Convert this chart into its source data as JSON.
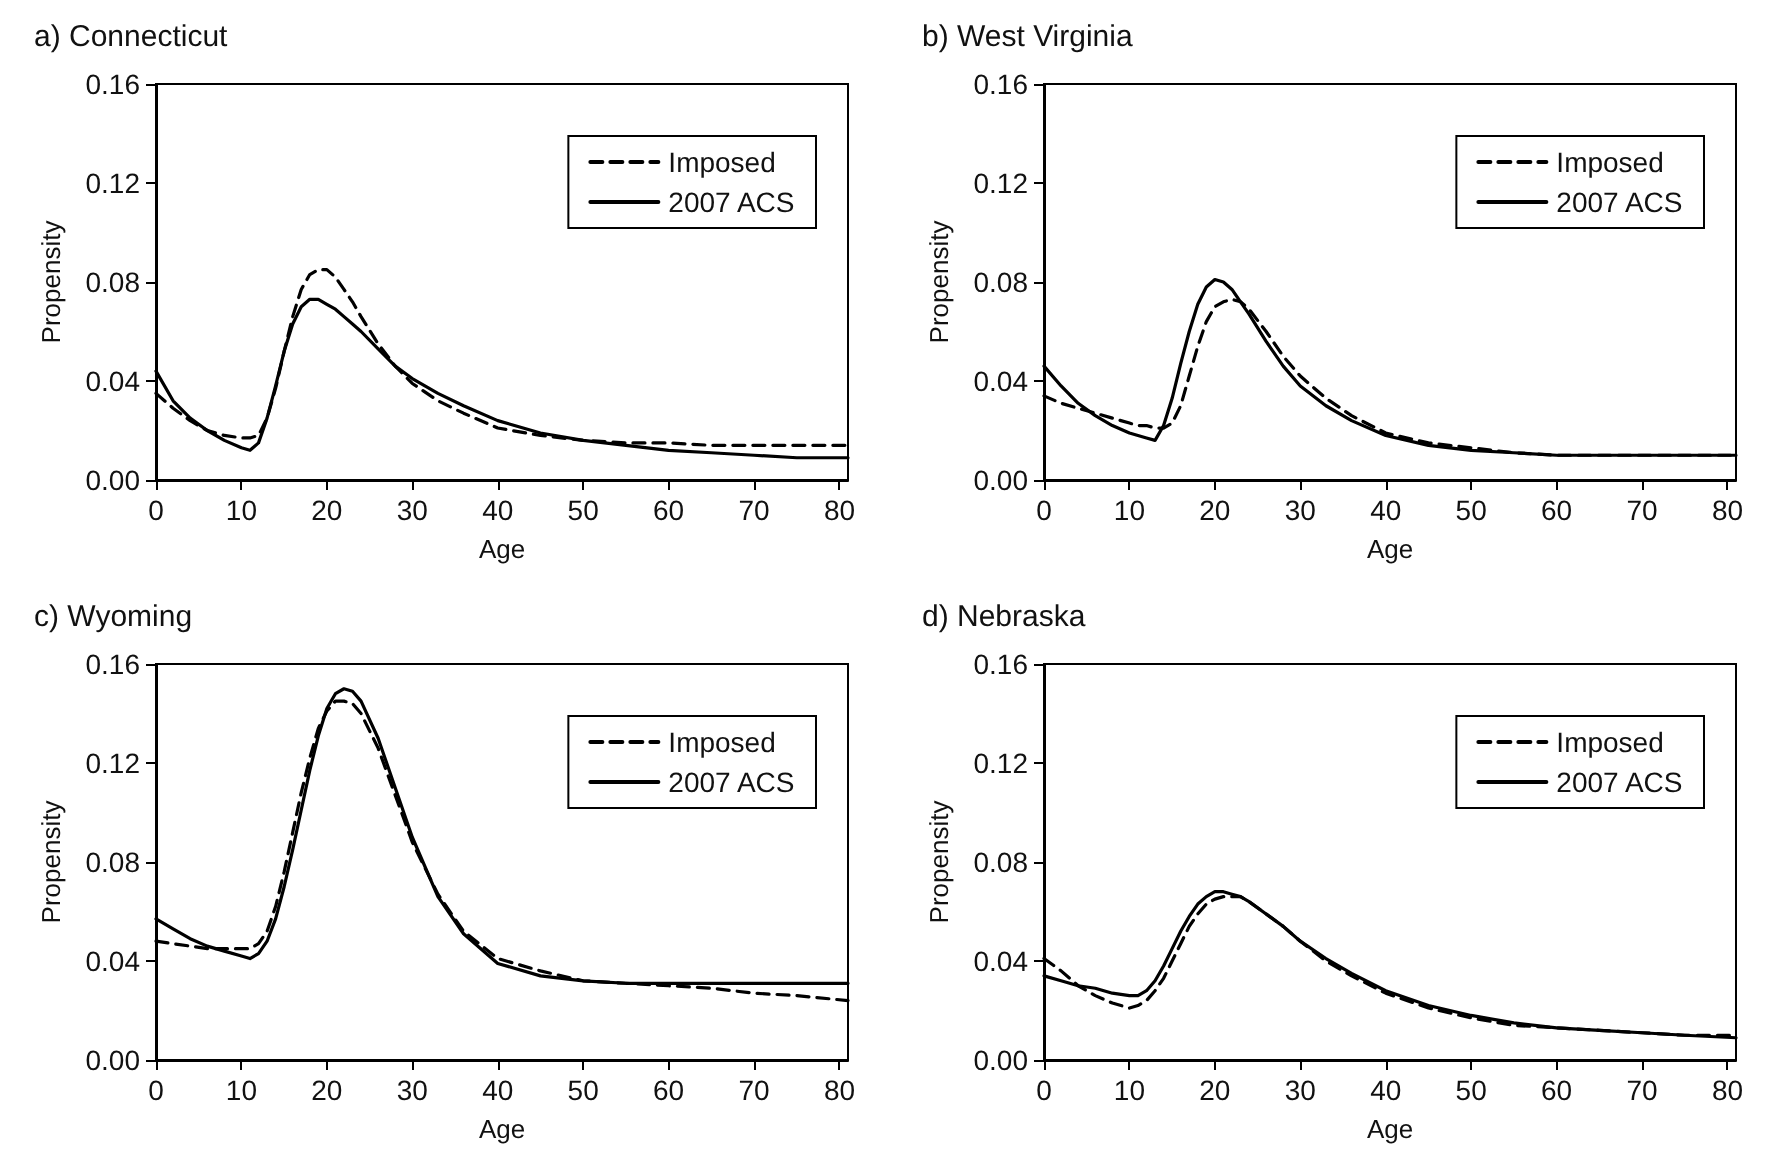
{
  "chart_data": [
    {
      "type": "line",
      "title": "a) Connecticut",
      "xlabel": "Age",
      "ylabel": "Propensity",
      "xlim": [
        0,
        81
      ],
      "xticks": [
        0,
        10,
        20,
        30,
        40,
        50,
        60,
        70,
        80
      ],
      "ylim": [
        0,
        0.16
      ],
      "yticks": [
        {
          "value": 0,
          "label": "0.00"
        },
        {
          "value": 0.04,
          "label": "0.04"
        },
        {
          "value": 0.08,
          "label": "0.08"
        },
        {
          "value": 0.12,
          "label": "0.12"
        },
        {
          "value": 0.16,
          "label": "0.16"
        }
      ],
      "grid": false,
      "legend": "top right",
      "marker": "none",
      "x": [
        0,
        2,
        4,
        6,
        8,
        10,
        11,
        12,
        13,
        14,
        15,
        16,
        17,
        18,
        19,
        20,
        21,
        22,
        23,
        24,
        26,
        28,
        30,
        33,
        36,
        40,
        45,
        50,
        55,
        60,
        65,
        70,
        75,
        81
      ],
      "series": [
        {
          "name": "Imposed",
          "color": "#000000",
          "line_style": "dashed",
          "values": [
            0.035,
            0.029,
            0.024,
            0.02,
            0.018,
            0.017,
            0.017,
            0.018,
            0.025,
            0.037,
            0.052,
            0.066,
            0.077,
            0.083,
            0.085,
            0.085,
            0.082,
            0.077,
            0.072,
            0.066,
            0.055,
            0.046,
            0.039,
            0.032,
            0.027,
            0.021,
            0.018,
            0.016,
            0.015,
            0.015,
            0.014,
            0.014,
            0.014,
            0.014
          ]
        },
        {
          "name": "2007 ACS",
          "color": "#000000",
          "line_style": "solid",
          "values": [
            0.044,
            0.032,
            0.025,
            0.02,
            0.016,
            0.013,
            0.012,
            0.015,
            0.025,
            0.038,
            0.052,
            0.063,
            0.07,
            0.073,
            0.073,
            0.071,
            0.069,
            0.066,
            0.063,
            0.06,
            0.053,
            0.046,
            0.041,
            0.035,
            0.03,
            0.024,
            0.019,
            0.016,
            0.014,
            0.012,
            0.011,
            0.01,
            0.009,
            0.009
          ]
        }
      ]
    },
    {
      "type": "line",
      "title": "b) West Virginia",
      "xlabel": "Age",
      "ylabel": "Propensity",
      "xlim": [
        0,
        81
      ],
      "xticks": [
        0,
        10,
        20,
        30,
        40,
        50,
        60,
        70,
        80
      ],
      "ylim": [
        0,
        0.16
      ],
      "yticks": [
        {
          "value": 0,
          "label": "0.00"
        },
        {
          "value": 0.04,
          "label": "0.04"
        },
        {
          "value": 0.08,
          "label": "0.08"
        },
        {
          "value": 0.12,
          "label": "0.12"
        },
        {
          "value": 0.16,
          "label": "0.16"
        }
      ],
      "grid": false,
      "legend": "top right",
      "marker": "none",
      "x": [
        0,
        2,
        4,
        6,
        8,
        10,
        11,
        12,
        13,
        14,
        15,
        16,
        17,
        18,
        19,
        20,
        21,
        22,
        23,
        24,
        26,
        28,
        30,
        33,
        36,
        40,
        45,
        50,
        55,
        60,
        65,
        70,
        75,
        81
      ],
      "series": [
        {
          "name": "Imposed",
          "color": "#000000",
          "line_style": "dashed",
          "values": [
            0.034,
            0.031,
            0.029,
            0.027,
            0.025,
            0.023,
            0.022,
            0.022,
            0.021,
            0.021,
            0.023,
            0.03,
            0.042,
            0.054,
            0.064,
            0.07,
            0.072,
            0.073,
            0.072,
            0.069,
            0.06,
            0.05,
            0.042,
            0.033,
            0.026,
            0.019,
            0.015,
            0.013,
            0.011,
            0.01,
            0.01,
            0.01,
            0.01,
            0.01
          ]
        },
        {
          "name": "2007 ACS",
          "color": "#000000",
          "line_style": "solid",
          "values": [
            0.046,
            0.038,
            0.031,
            0.026,
            0.022,
            0.019,
            0.018,
            0.017,
            0.016,
            0.022,
            0.033,
            0.047,
            0.06,
            0.071,
            0.078,
            0.081,
            0.08,
            0.077,
            0.072,
            0.067,
            0.056,
            0.046,
            0.038,
            0.03,
            0.024,
            0.018,
            0.014,
            0.012,
            0.011,
            0.01,
            0.01,
            0.01,
            0.01,
            0.01
          ]
        }
      ]
    },
    {
      "type": "line",
      "title": "c) Wyoming",
      "xlabel": "Age",
      "ylabel": "Propensity",
      "xlim": [
        0,
        81
      ],
      "xticks": [
        0,
        10,
        20,
        30,
        40,
        50,
        60,
        70,
        80
      ],
      "ylim": [
        0,
        0.16
      ],
      "yticks": [
        {
          "value": 0,
          "label": "0.00"
        },
        {
          "value": 0.04,
          "label": "0.04"
        },
        {
          "value": 0.08,
          "label": "0.08"
        },
        {
          "value": 0.12,
          "label": "0.12"
        },
        {
          "value": 0.16,
          "label": "0.16"
        }
      ],
      "grid": false,
      "legend": "top right",
      "marker": "none",
      "x": [
        0,
        2,
        4,
        6,
        8,
        10,
        11,
        12,
        13,
        14,
        15,
        16,
        17,
        18,
        19,
        20,
        21,
        22,
        23,
        24,
        26,
        28,
        30,
        33,
        36,
        40,
        45,
        50,
        55,
        60,
        65,
        70,
        75,
        81
      ],
      "series": [
        {
          "name": "Imposed",
          "color": "#000000",
          "line_style": "dashed",
          "values": [
            0.048,
            0.047,
            0.046,
            0.045,
            0.045,
            0.045,
            0.045,
            0.047,
            0.052,
            0.062,
            0.076,
            0.092,
            0.108,
            0.122,
            0.134,
            0.141,
            0.145,
            0.145,
            0.144,
            0.14,
            0.126,
            0.107,
            0.088,
            0.067,
            0.052,
            0.041,
            0.036,
            0.032,
            0.031,
            0.03,
            0.029,
            0.027,
            0.026,
            0.024
          ]
        },
        {
          "name": "2007 ACS",
          "color": "#000000",
          "line_style": "solid",
          "values": [
            0.057,
            0.053,
            0.049,
            0.046,
            0.044,
            0.042,
            0.041,
            0.043,
            0.048,
            0.057,
            0.07,
            0.085,
            0.101,
            0.117,
            0.131,
            0.142,
            0.148,
            0.15,
            0.149,
            0.145,
            0.13,
            0.11,
            0.09,
            0.066,
            0.051,
            0.039,
            0.034,
            0.032,
            0.031,
            0.031,
            0.031,
            0.031,
            0.031,
            0.031
          ]
        }
      ]
    },
    {
      "type": "line",
      "title": "d) Nebraska",
      "xlabel": "Age",
      "ylabel": "Propensity",
      "xlim": [
        0,
        81
      ],
      "xticks": [
        0,
        10,
        20,
        30,
        40,
        50,
        60,
        70,
        80
      ],
      "ylim": [
        0,
        0.16
      ],
      "yticks": [
        {
          "value": 0,
          "label": "0.00"
        },
        {
          "value": 0.04,
          "label": "0.04"
        },
        {
          "value": 0.08,
          "label": "0.08"
        },
        {
          "value": 0.12,
          "label": "0.12"
        },
        {
          "value": 0.16,
          "label": "0.16"
        }
      ],
      "grid": false,
      "legend": "top right",
      "marker": "none",
      "x": [
        0,
        2,
        4,
        6,
        8,
        10,
        11,
        12,
        13,
        14,
        15,
        16,
        17,
        18,
        19,
        20,
        21,
        22,
        23,
        24,
        26,
        28,
        30,
        33,
        36,
        40,
        45,
        50,
        55,
        60,
        65,
        70,
        75,
        81
      ],
      "series": [
        {
          "name": "Imposed",
          "color": "#000000",
          "line_style": "dashed",
          "values": [
            0.041,
            0.036,
            0.03,
            0.026,
            0.023,
            0.021,
            0.022,
            0.024,
            0.028,
            0.033,
            0.04,
            0.047,
            0.054,
            0.059,
            0.063,
            0.065,
            0.066,
            0.066,
            0.066,
            0.064,
            0.059,
            0.054,
            0.048,
            0.04,
            0.034,
            0.027,
            0.021,
            0.017,
            0.014,
            0.013,
            0.012,
            0.011,
            0.01,
            0.01
          ]
        },
        {
          "name": "2007 ACS",
          "color": "#000000",
          "line_style": "solid",
          "values": [
            0.034,
            0.032,
            0.03,
            0.029,
            0.027,
            0.026,
            0.026,
            0.028,
            0.032,
            0.038,
            0.045,
            0.052,
            0.058,
            0.063,
            0.066,
            0.068,
            0.068,
            0.067,
            0.066,
            0.064,
            0.059,
            0.054,
            0.048,
            0.041,
            0.035,
            0.028,
            0.022,
            0.018,
            0.015,
            0.013,
            0.012,
            0.011,
            0.01,
            0.009
          ]
        }
      ]
    }
  ]
}
